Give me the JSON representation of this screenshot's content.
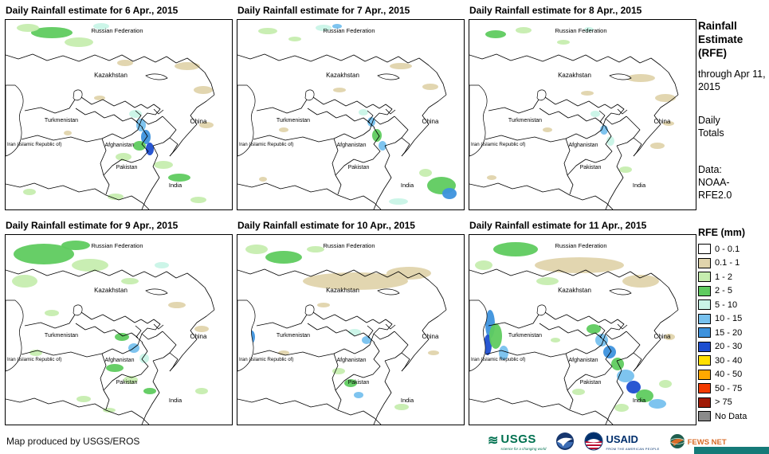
{
  "panels": [
    {
      "title": "Daily Rainfall estimate for 6 Apr., 2015"
    },
    {
      "title": "Daily Rainfall estimate for 7 Apr., 2015"
    },
    {
      "title": "Daily Rainfall estimate for 8 Apr., 2015"
    },
    {
      "title": "Daily Rainfall estimate for 9 Apr., 2015"
    },
    {
      "title": "Daily Rainfall estimate for 10 Apr., 2015"
    },
    {
      "title": "Daily Rainfall estimate for 11 Apr., 2015"
    }
  ],
  "map_labels": [
    "Russian Federation",
    "Kazakhstan",
    "Turkmenistan",
    "China",
    "Iran (Islamic Republic of)",
    "Afghanistan",
    "Pakistan",
    "India"
  ],
  "sidebar": {
    "title": "Rainfall Estimate (RFE)",
    "through": "through Apr 11, 2015",
    "totals": "Daily Totals",
    "source": "Data: NOAA-RFE2.0"
  },
  "legend": {
    "title": "RFE (mm)",
    "items": [
      {
        "label": "0 - 0.1",
        "color": "#FFFFFF"
      },
      {
        "label": "0.1 - 1",
        "color": "#E0D4AC"
      },
      {
        "label": "1 - 2",
        "color": "#C6EDAF"
      },
      {
        "label": "2 - 5",
        "color": "#5FCB5F"
      },
      {
        "label": "5 - 10",
        "color": "#C9F4E7"
      },
      {
        "label": "10 - 15",
        "color": "#77C1EE"
      },
      {
        "label": "15 - 20",
        "color": "#3D92DD"
      },
      {
        "label": "20 - 30",
        "color": "#1D4ED0"
      },
      {
        "label": "30 - 40",
        "color": "#FFE000"
      },
      {
        "label": "40 - 50",
        "color": "#FFA800"
      },
      {
        "label": "50 - 75",
        "color": "#F23A00"
      },
      {
        "label": "> 75",
        "color": "#A01A06"
      },
      {
        "label": "No Data",
        "color": "#8A8A8A"
      }
    ]
  },
  "footer": {
    "credit": "Map produced by USGS/EROS",
    "logos": {
      "usgs": {
        "text": "USGS",
        "tagline": "science for a changing world",
        "color": "#007150"
      },
      "noaa": {
        "color": "#16366E"
      },
      "usaid": {
        "text": "USAID",
        "tagline": "FROM THE AMERICAN PEOPLE",
        "color": "#002F6C"
      },
      "fewsnet": {
        "text": "FEWS NET",
        "color": "#D96B27",
        "bar_color": "#157A78"
      }
    }
  }
}
